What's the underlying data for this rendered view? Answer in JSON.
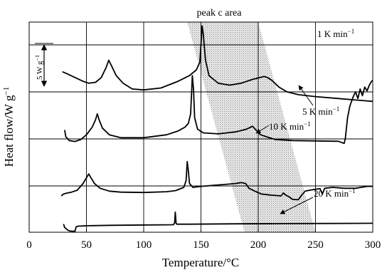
{
  "chart_data": {
    "type": "line",
    "title": "",
    "xlabel": "Temperature/°C",
    "ylabel": "Heat flow/W g",
    "ylabel_sup": "−1",
    "xlim": [
      0,
      300
    ],
    "xticks": [
      "0",
      "50",
      "100",
      "150",
      "200",
      "250",
      "300"
    ],
    "grid": true,
    "annotation_region": {
      "label": "peak c area",
      "top_x_range": [
        138,
        200
      ],
      "bottom_x_range": [
        188,
        250
      ]
    },
    "scale_bar": {
      "label": "5 W g",
      "sup": "−1",
      "value_W_per_g": 5
    },
    "series": [
      {
        "name": "1 K min",
        "unit_sup": "−1",
        "points": [
          [
            30,
            0.43
          ],
          [
            31,
            0.25
          ],
          [
            34,
            0.1
          ],
          [
            36,
            0.06
          ],
          [
            40,
            0.05
          ],
          [
            41,
            0.28
          ],
          [
            43,
            0.32
          ],
          [
            45,
            0.32
          ],
          [
            47,
            0.33
          ],
          [
            50,
            0.34
          ],
          [
            70,
            0.36
          ],
          [
            100,
            0.38
          ],
          [
            125,
            0.39
          ],
          [
            126,
            0.4
          ],
          [
            127,
            0.5
          ],
          [
            127.6,
            1.05
          ],
          [
            128.3,
            0.45
          ],
          [
            129,
            0.42
          ],
          [
            140,
            0.42
          ],
          [
            180,
            0.44
          ],
          [
            220,
            0.45
          ],
          [
            260,
            0.46
          ],
          [
            300,
            0.47
          ]
        ]
      },
      {
        "name": "5 K min",
        "unit_sup": "−1",
        "points": [
          [
            28,
            1.9
          ],
          [
            30,
            2.0
          ],
          [
            33,
            2.05
          ],
          [
            37,
            2.1
          ],
          [
            42,
            2.2
          ],
          [
            47,
            2.55
          ],
          [
            50,
            2.85
          ],
          [
            52,
            3.05
          ],
          [
            54,
            2.85
          ],
          [
            57,
            2.55
          ],
          [
            62,
            2.3
          ],
          [
            70,
            2.15
          ],
          [
            80,
            2.1
          ],
          [
            100,
            2.08
          ],
          [
            120,
            2.12
          ],
          [
            128,
            2.18
          ],
          [
            135,
            2.35
          ],
          [
            137,
            2.7
          ],
          [
            138,
            3.7
          ],
          [
            139,
            3.2
          ],
          [
            140,
            2.55
          ],
          [
            143,
            2.35
          ],
          [
            150,
            2.4
          ],
          [
            160,
            2.45
          ],
          [
            170,
            2.5
          ],
          [
            180,
            2.55
          ],
          [
            185,
            2.6
          ],
          [
            189,
            2.55
          ],
          [
            192,
            2.3
          ],
          [
            197,
            2.15
          ],
          [
            203,
            2.0
          ],
          [
            210,
            1.95
          ],
          [
            220,
            1.9
          ],
          [
            222,
            2.05
          ],
          [
            224,
            1.95
          ],
          [
            227,
            1.85
          ],
          [
            230,
            1.72
          ],
          [
            235,
            1.7
          ],
          [
            238,
            1.95
          ],
          [
            241,
            2.15
          ],
          [
            245,
            2.2
          ],
          [
            250,
            2.25
          ],
          [
            254,
            2.28
          ],
          [
            256,
            2.0
          ],
          [
            258,
            2.3
          ],
          [
            265,
            2.35
          ],
          [
            275,
            2.3
          ],
          [
            285,
            2.3
          ],
          [
            295,
            2.4
          ],
          [
            300,
            2.4
          ]
        ]
      },
      {
        "name": "10 K min",
        "unit_sup": "−1",
        "points": [
          [
            31,
            5.35
          ],
          [
            32,
            5.0
          ],
          [
            35,
            4.8
          ],
          [
            40,
            4.75
          ],
          [
            45,
            4.85
          ],
          [
            50,
            5.1
          ],
          [
            55,
            5.5
          ],
          [
            58,
            5.9
          ],
          [
            59.5,
            6.2
          ],
          [
            61,
            5.9
          ],
          [
            64,
            5.45
          ],
          [
            70,
            5.1
          ],
          [
            80,
            4.95
          ],
          [
            100,
            4.95
          ],
          [
            120,
            5.1
          ],
          [
            130,
            5.3
          ],
          [
            136,
            5.5
          ],
          [
            139,
            5.7
          ],
          [
            141,
            6.2
          ],
          [
            142.5,
            8.2
          ],
          [
            143.5,
            7.5
          ],
          [
            144.5,
            6.0
          ],
          [
            147,
            5.4
          ],
          [
            152,
            5.2
          ],
          [
            165,
            5.15
          ],
          [
            180,
            5.25
          ],
          [
            190,
            5.4
          ],
          [
            195,
            5.55
          ],
          [
            198,
            5.35
          ],
          [
            202,
            5.1
          ],
          [
            215,
            4.85
          ],
          [
            230,
            4.8
          ],
          [
            250,
            4.78
          ],
          [
            270,
            4.76
          ],
          [
            275,
            4.65
          ],
          [
            276,
            4.9
          ],
          [
            278,
            6.0
          ],
          [
            280,
            6.6
          ],
          [
            283,
            7.1
          ],
          [
            285,
            7.35
          ],
          [
            287,
            7.0
          ],
          [
            289,
            7.5
          ],
          [
            291,
            7.15
          ],
          [
            293,
            7.6
          ],
          [
            295,
            7.4
          ],
          [
            297,
            7.7
          ],
          [
            299,
            7.9
          ],
          [
            300,
            7.95
          ]
        ]
      },
      {
        "name": "20 K min",
        "unit_sup": "−1",
        "points": [
          [
            29,
            8.4
          ],
          [
            33,
            8.3
          ],
          [
            40,
            8.1
          ],
          [
            47,
            7.9
          ],
          [
            52,
            7.8
          ],
          [
            58,
            7.85
          ],
          [
            63,
            8.1
          ],
          [
            67,
            8.6
          ],
          [
            69.5,
            9.0
          ],
          [
            72,
            8.7
          ],
          [
            76,
            8.2
          ],
          [
            82,
            7.8
          ],
          [
            90,
            7.5
          ],
          [
            100,
            7.45
          ],
          [
            115,
            7.55
          ],
          [
            130,
            7.9
          ],
          [
            140,
            8.2
          ],
          [
            146,
            8.5
          ],
          [
            149,
            8.9
          ],
          [
            150,
            9.8
          ],
          [
            151,
            10.8
          ],
          [
            152,
            10.4
          ],
          [
            154,
            9.0
          ],
          [
            157,
            8.2
          ],
          [
            165,
            7.8
          ],
          [
            175,
            7.7
          ],
          [
            185,
            7.8
          ],
          [
            195,
            8.0
          ],
          [
            205,
            8.15
          ],
          [
            208,
            8.1
          ],
          [
            212,
            7.95
          ],
          [
            218,
            7.6
          ],
          [
            225,
            7.35
          ],
          [
            235,
            7.2
          ],
          [
            250,
            7.1
          ],
          [
            270,
            7.0
          ],
          [
            290,
            6.9
          ],
          [
            300,
            6.85
          ]
        ]
      }
    ]
  }
}
